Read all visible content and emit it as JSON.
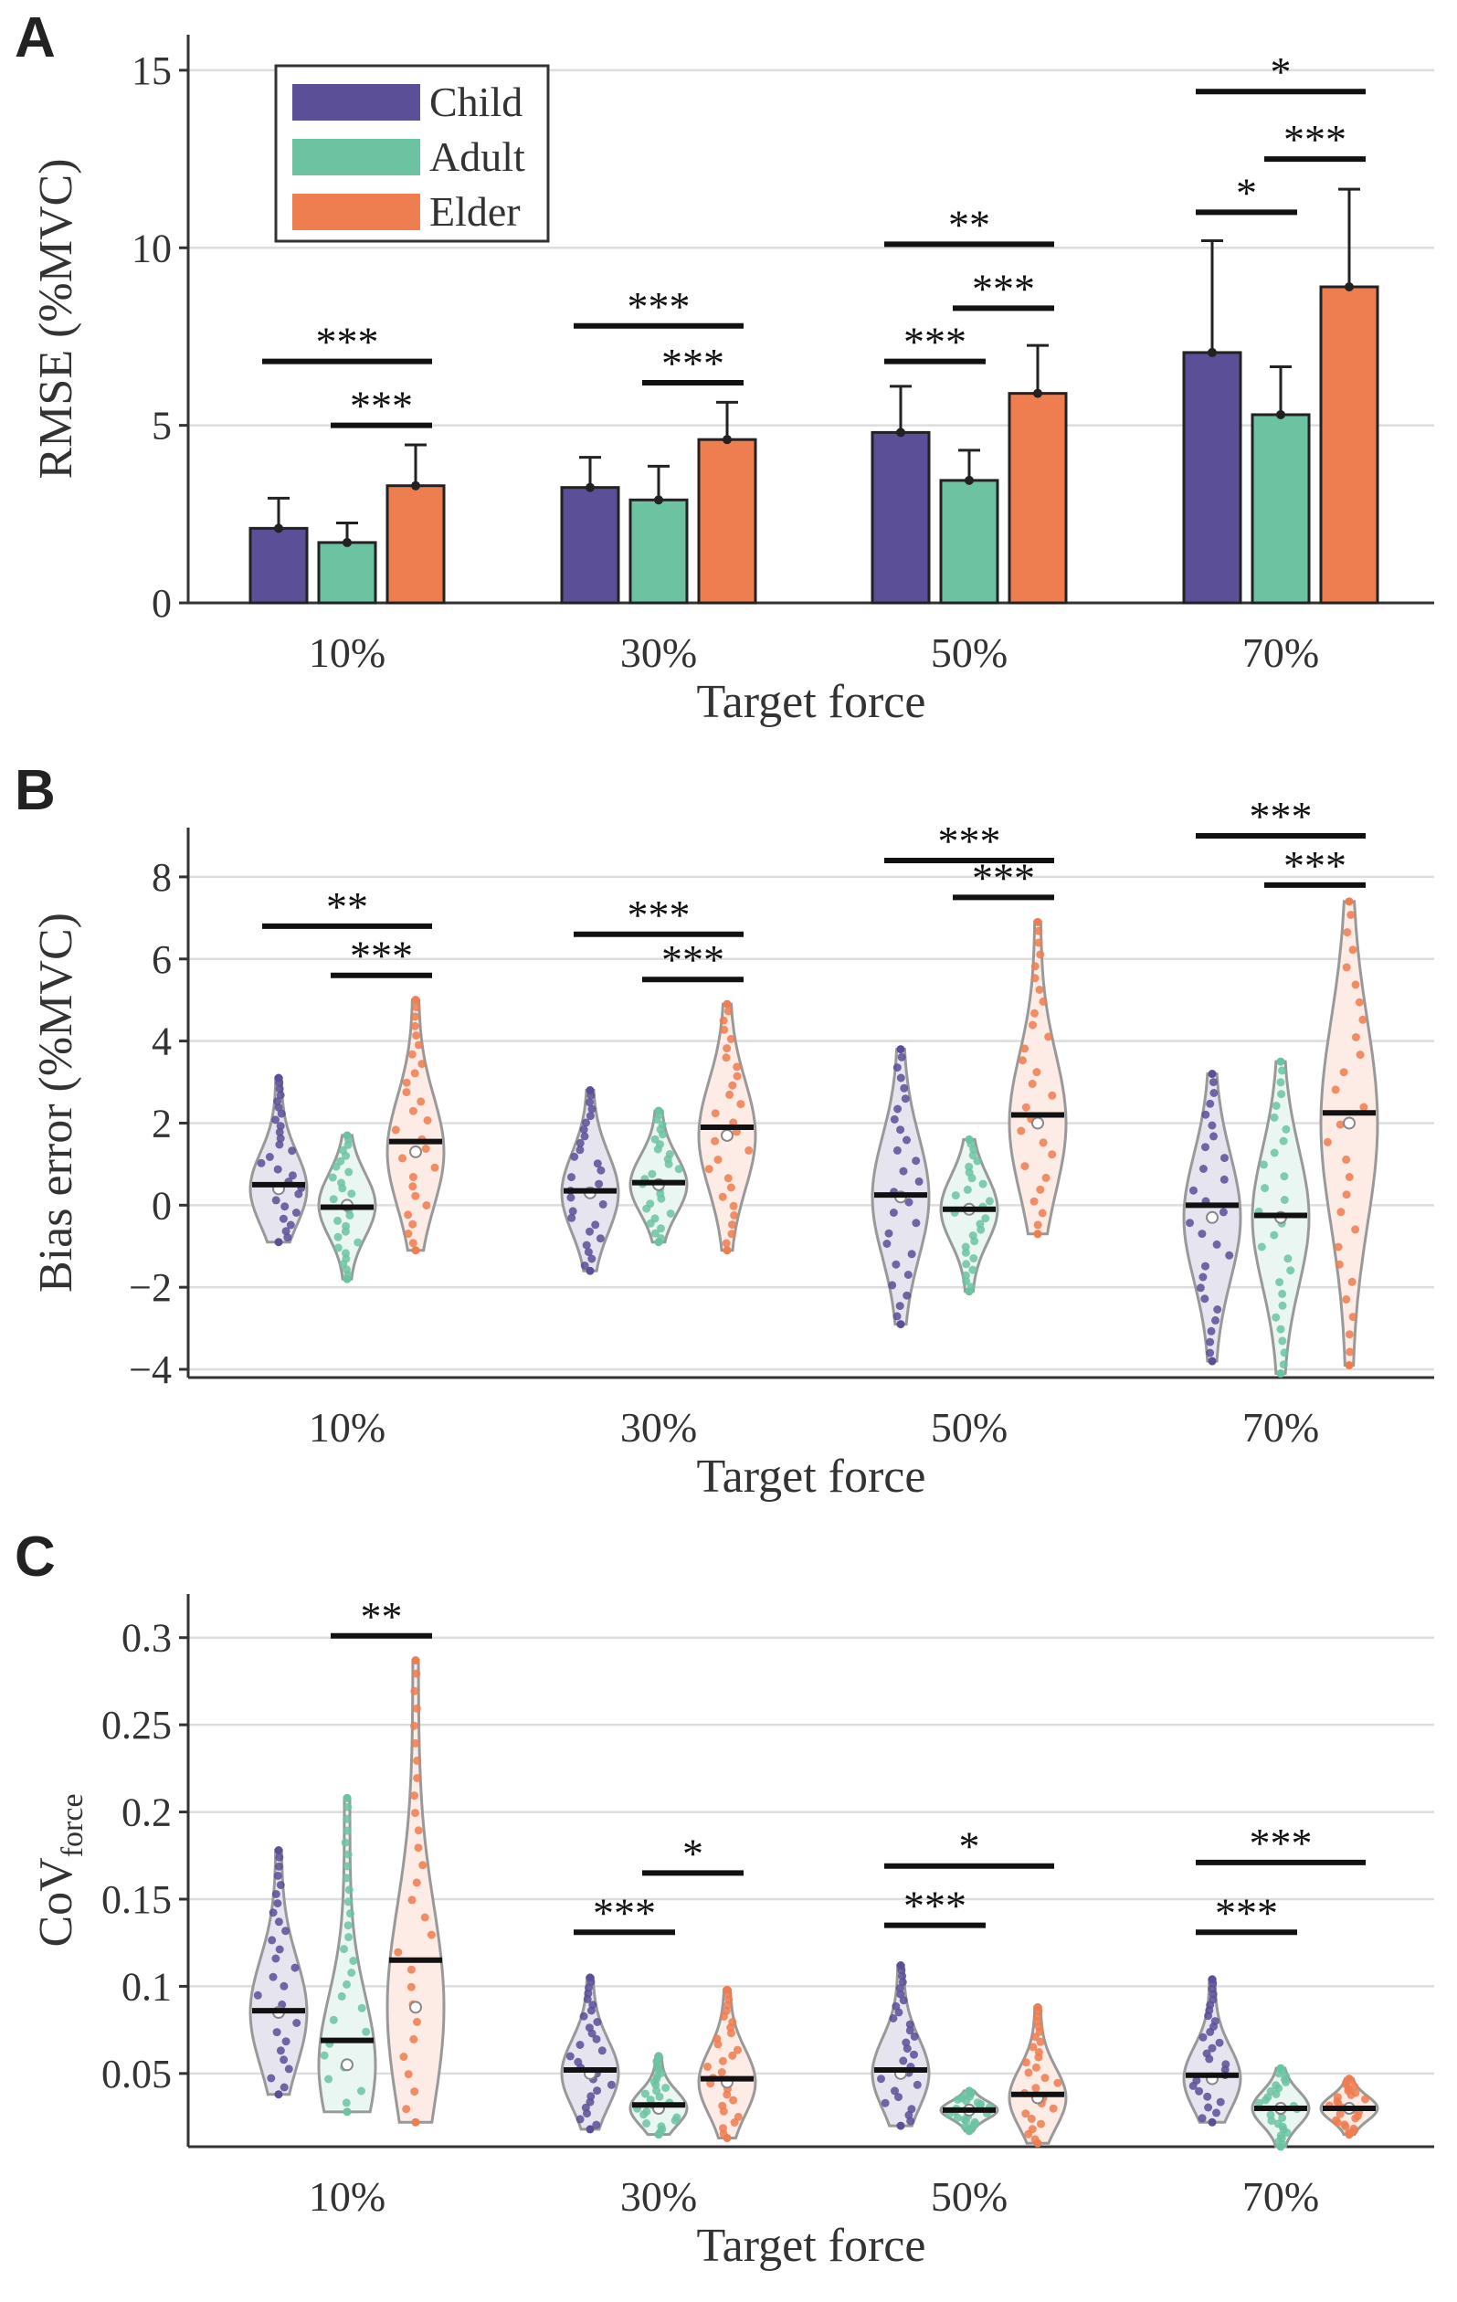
{
  "legend": [
    "Child",
    "Adult",
    "Elder"
  ],
  "colors": {
    "Child": "#5b4f97",
    "Adult": "#6cc3a2",
    "Elder": "#ee7d50",
    "violin_edge": "#999999",
    "sig": "#111111"
  },
  "chart_data": [
    {
      "panel": "A",
      "type": "bar",
      "title": "",
      "xlabel": "Target force",
      "ylabel": "RMSE (%MVC)",
      "categories": [
        "10%",
        "30%",
        "50%",
        "70%"
      ],
      "ylim": [
        0,
        16
      ],
      "yticks": [
        0,
        5,
        10,
        15
      ],
      "ytick_labels": [
        "0",
        "5",
        "10",
        "15"
      ],
      "series": [
        {
          "name": "Child",
          "values": [
            2.1,
            3.25,
            4.8,
            7.05
          ],
          "errors": [
            0.85,
            0.85,
            1.3,
            3.15
          ]
        },
        {
          "name": "Adult",
          "values": [
            1.7,
            2.9,
            3.45,
            5.3
          ],
          "errors": [
            0.55,
            0.95,
            0.85,
            1.35
          ]
        },
        {
          "name": "Elder",
          "values": [
            3.3,
            4.6,
            5.9,
            8.9
          ],
          "errors": [
            1.15,
            1.05,
            1.35,
            2.75
          ]
        }
      ],
      "significance": [
        {
          "category": "10%",
          "from": "Child",
          "to": "Elder",
          "y": 6.8,
          "label": "***"
        },
        {
          "category": "10%",
          "from": "Adult",
          "to": "Elder",
          "y": 5.0,
          "label": "***"
        },
        {
          "category": "30%",
          "from": "Child",
          "to": "Elder",
          "y": 7.8,
          "label": "***"
        },
        {
          "category": "30%",
          "from": "Adult",
          "to": "Elder",
          "y": 6.2,
          "label": "***"
        },
        {
          "category": "50%",
          "from": "Child",
          "to": "Elder",
          "y": 10.1,
          "label": "**"
        },
        {
          "category": "50%",
          "from": "Adult",
          "to": "Elder",
          "y": 8.3,
          "label": "***"
        },
        {
          "category": "50%",
          "from": "Child",
          "to": "Adult",
          "y": 6.8,
          "label": "***"
        },
        {
          "category": "70%",
          "from": "Child",
          "to": "Elder",
          "y": 14.4,
          "label": "*"
        },
        {
          "category": "70%",
          "from": "Adult",
          "to": "Elder",
          "y": 12.5,
          "label": "***"
        },
        {
          "category": "70%",
          "from": "Child",
          "to": "Adult",
          "y": 11.0,
          "label": "*"
        }
      ]
    },
    {
      "panel": "B",
      "type": "violin",
      "title": "",
      "xlabel": "Target force",
      "ylabel": "Bias error (%MVC)",
      "categories": [
        "10%",
        "30%",
        "50%",
        "70%"
      ],
      "ylim": [
        -4.2,
        9.2
      ],
      "yticks": [
        -4,
        -2,
        0,
        2,
        4,
        6,
        8
      ],
      "ytick_labels": [
        "−4",
        "−2",
        "0",
        "2",
        "4",
        "6",
        "8"
      ],
      "series": [
        {
          "name": "Child",
          "mean": [
            0.5,
            0.35,
            0.25,
            0.0
          ],
          "median": [
            0.4,
            0.3,
            0.2,
            -0.3
          ],
          "min": [
            -0.9,
            -1.6,
            -2.9,
            -3.8
          ],
          "max": [
            3.1,
            2.8,
            3.8,
            3.2
          ]
        },
        {
          "name": "Adult",
          "mean": [
            -0.05,
            0.55,
            -0.1,
            -0.25
          ],
          "median": [
            0.0,
            0.5,
            -0.1,
            -0.3
          ],
          "min": [
            -1.8,
            -0.9,
            -2.1,
            -4.1
          ],
          "max": [
            1.7,
            2.3,
            1.6,
            3.5
          ]
        },
        {
          "name": "Elder",
          "mean": [
            1.55,
            1.9,
            2.2,
            2.25
          ],
          "median": [
            1.3,
            1.7,
            2.0,
            2.0
          ],
          "min": [
            -1.1,
            -1.1,
            -0.7,
            -3.9
          ],
          "max": [
            5.0,
            4.9,
            6.9,
            7.4
          ]
        }
      ],
      "significance": [
        {
          "category": "10%",
          "from": "Child",
          "to": "Elder",
          "y": 6.8,
          "label": "**"
        },
        {
          "category": "10%",
          "from": "Adult",
          "to": "Elder",
          "y": 5.6,
          "label": "***"
        },
        {
          "category": "30%",
          "from": "Child",
          "to": "Elder",
          "y": 6.6,
          "label": "***"
        },
        {
          "category": "30%",
          "from": "Adult",
          "to": "Elder",
          "y": 5.5,
          "label": "***"
        },
        {
          "category": "50%",
          "from": "Child",
          "to": "Elder",
          "y": 8.4,
          "label": "***"
        },
        {
          "category": "50%",
          "from": "Adult",
          "to": "Elder",
          "y": 7.5,
          "label": "***"
        },
        {
          "category": "70%",
          "from": "Child",
          "to": "Elder",
          "y": 9.0,
          "label": "***"
        },
        {
          "category": "70%",
          "from": "Adult",
          "to": "Elder",
          "y": 7.8,
          "label": "***"
        }
      ]
    },
    {
      "panel": "C",
      "type": "violin",
      "title": "",
      "xlabel": "Target force",
      "ylabel": "CoV",
      "ylabel_sub": "force",
      "categories": [
        "10%",
        "30%",
        "50%",
        "70%"
      ],
      "ylim": [
        0.008,
        0.325
      ],
      "yticks": [
        0.05,
        0.1,
        0.15,
        0.2,
        0.25,
        0.3
      ],
      "ytick_labels": [
        "0.05",
        "0.1",
        "0.15",
        "0.2",
        "0.25",
        "0.3"
      ],
      "series": [
        {
          "name": "Child",
          "mean": [
            0.086,
            0.052,
            0.052,
            0.049
          ],
          "median": [
            0.085,
            0.05,
            0.05,
            0.047
          ],
          "min": [
            0.038,
            0.018,
            0.02,
            0.022
          ],
          "max": [
            0.178,
            0.105,
            0.112,
            0.104
          ]
        },
        {
          "name": "Adult",
          "mean": [
            0.069,
            0.032,
            0.029,
            0.03
          ],
          "median": [
            0.055,
            0.03,
            0.029,
            0.03
          ],
          "min": [
            0.028,
            0.015,
            0.017,
            0.008
          ],
          "max": [
            0.208,
            0.06,
            0.04,
            0.053
          ]
        },
        {
          "name": "Elder",
          "mean": [
            0.115,
            0.047,
            0.038,
            0.03
          ],
          "median": [
            0.088,
            0.045,
            0.036,
            0.03
          ],
          "min": [
            0.022,
            0.013,
            0.01,
            0.015
          ],
          "max": [
            0.287,
            0.098,
            0.088,
            0.047
          ]
        }
      ],
      "significance": [
        {
          "category": "10%",
          "from": "Adult",
          "to": "Elder",
          "y": 0.301,
          "label": "**"
        },
        {
          "category": "30%",
          "from": "Child",
          "to": "Adult",
          "y": 0.131,
          "label": "***"
        },
        {
          "category": "30%",
          "from": "Adult",
          "to": "Elder",
          "y": 0.165,
          "label": "*"
        },
        {
          "category": "50%",
          "from": "Child",
          "to": "Elder",
          "y": 0.169,
          "label": "*"
        },
        {
          "category": "50%",
          "from": "Child",
          "to": "Adult",
          "y": 0.135,
          "label": "***"
        },
        {
          "category": "70%",
          "from": "Child",
          "to": "Elder",
          "y": 0.171,
          "label": "***"
        },
        {
          "category": "70%",
          "from": "Child",
          "to": "Adult",
          "y": 0.131,
          "label": "***"
        }
      ]
    }
  ]
}
